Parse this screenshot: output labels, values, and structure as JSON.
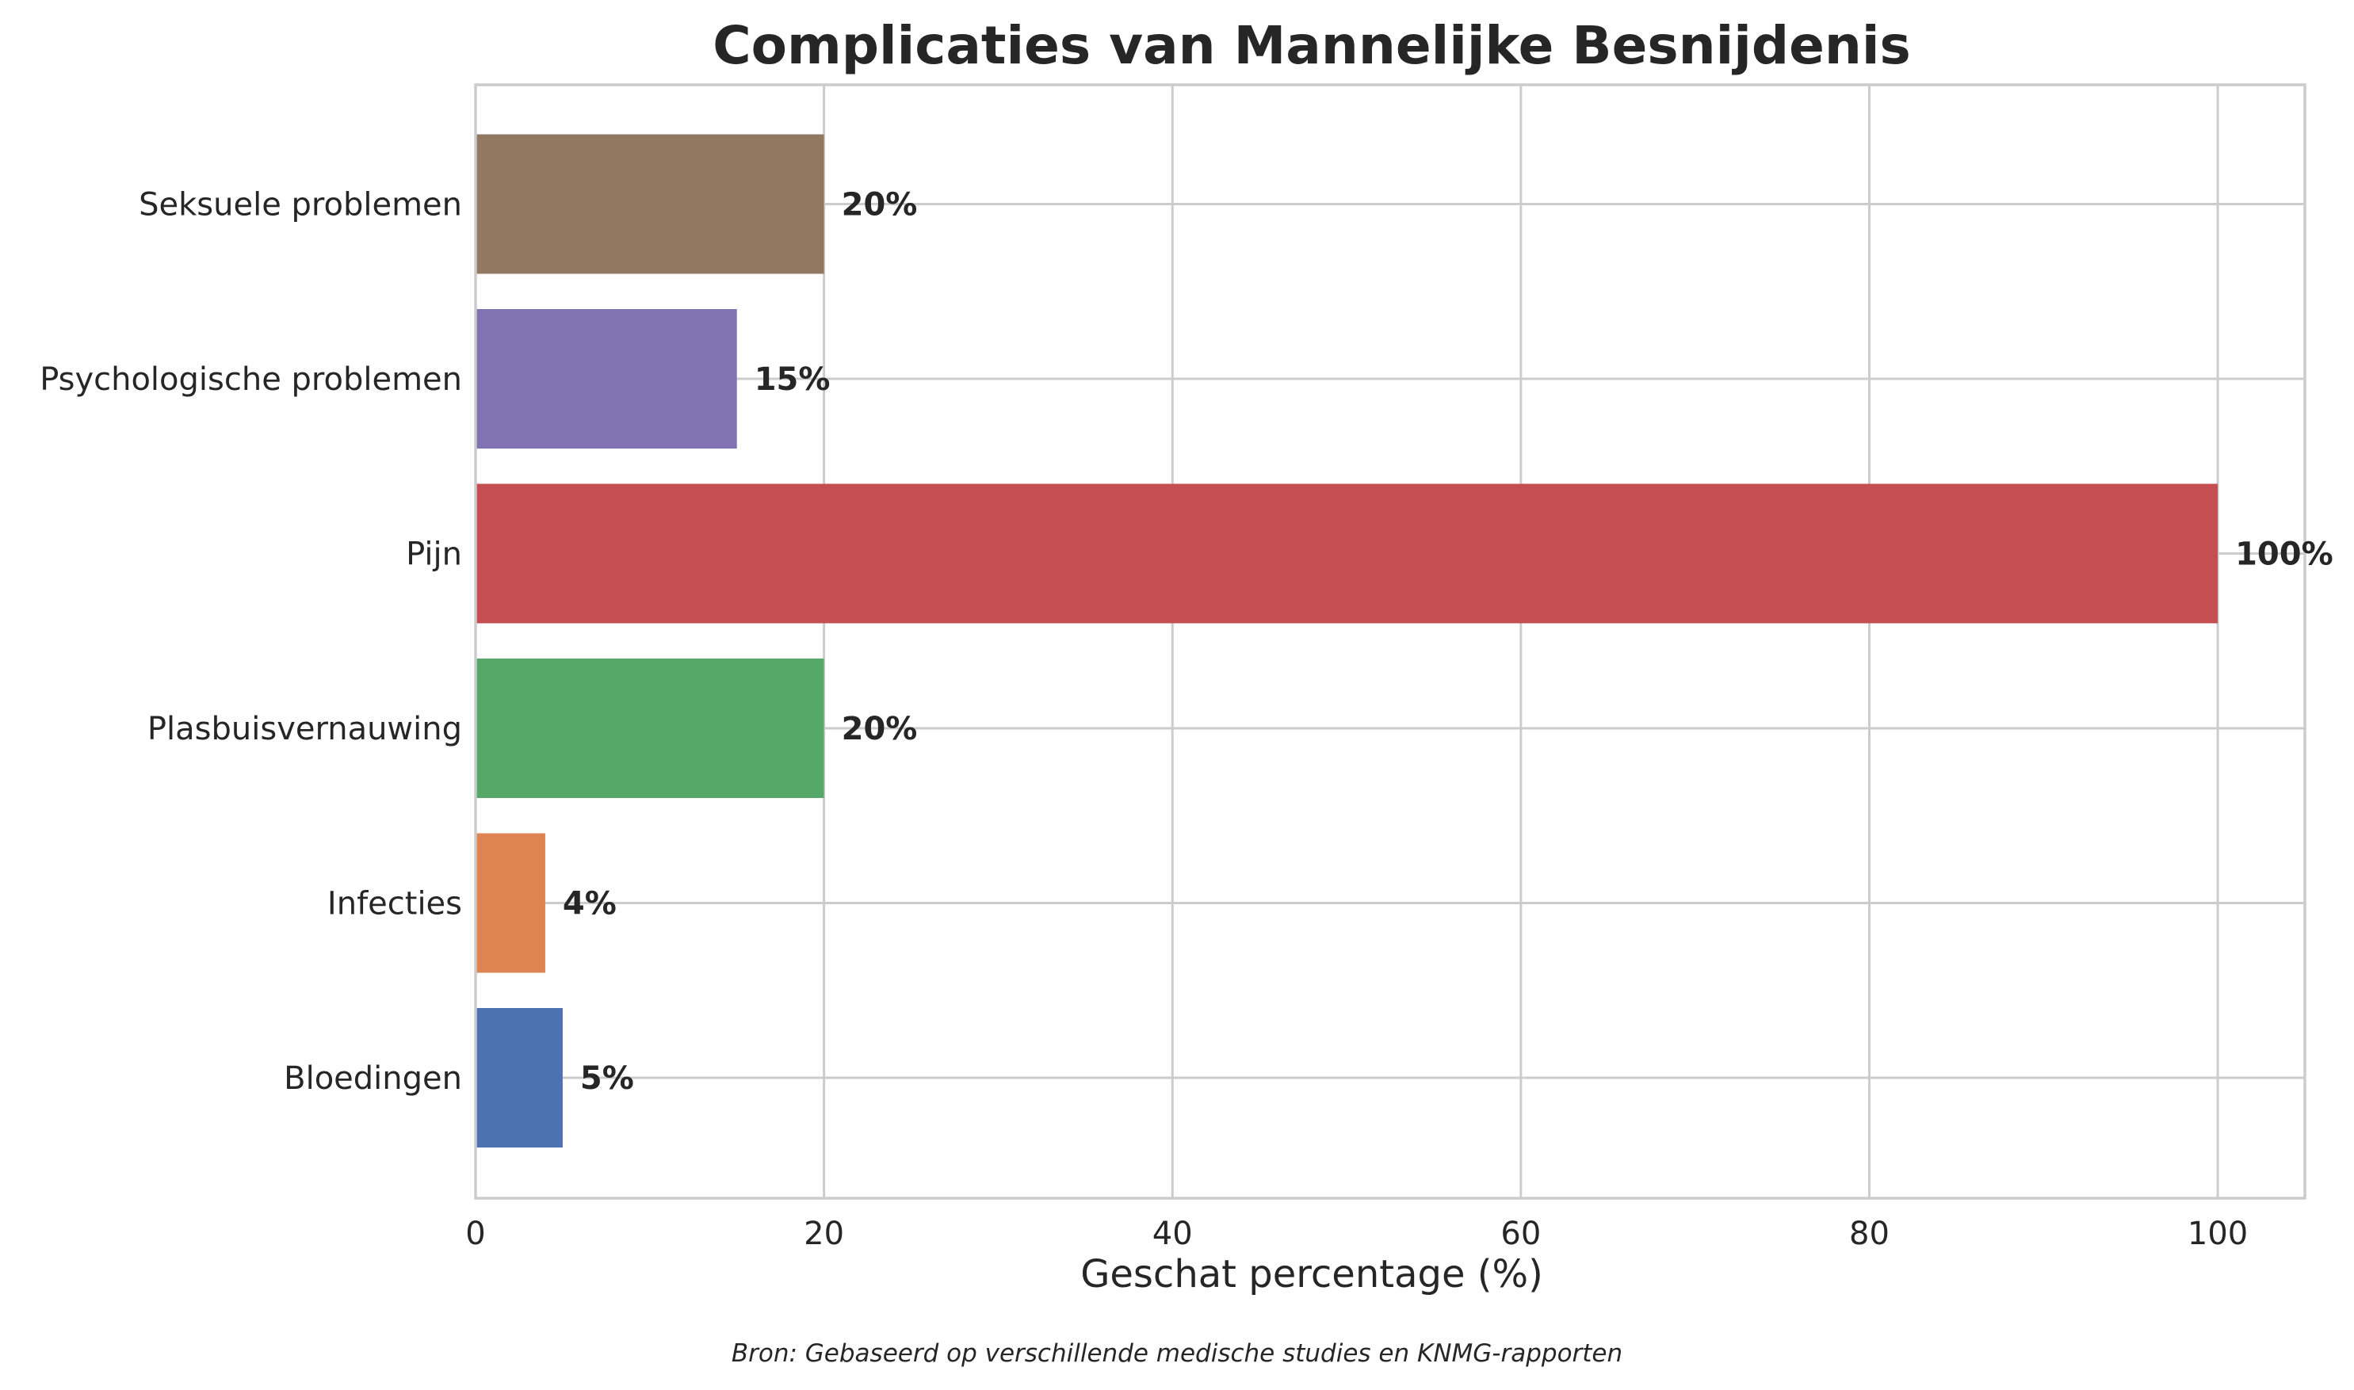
{
  "chart_data": {
    "type": "bar",
    "orientation": "horizontal",
    "title": "Complicaties van Mannelijke Besnijdenis",
    "xlabel": "Geschat percentage (%)",
    "ylabel": "",
    "xlim": [
      0,
      105
    ],
    "x_ticks": [
      0,
      20,
      40,
      60,
      80,
      100
    ],
    "grid": true,
    "categories": [
      "Bloedingen",
      "Infecties",
      "Plasbuisvernauwing",
      "Pijn",
      "Psychologische problemen",
      "Seksuele problemen"
    ],
    "values": [
      5,
      4,
      20,
      100,
      15,
      20
    ],
    "value_labels": [
      "5%",
      "4%",
      "20%",
      "100%",
      "15%",
      "20%"
    ],
    "colors": [
      "#4c72b0",
      "#dd8452",
      "#55a868",
      "#c44e52",
      "#8172b3",
      "#937860"
    ],
    "source": "Bron: Gebaseerd op verschillende medische studies en KNMG-rapporten"
  }
}
